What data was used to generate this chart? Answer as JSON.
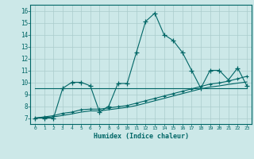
{
  "title": "",
  "xlabel": "Humidex (Indice chaleur)",
  "bg_color": "#cce8e8",
  "grid_color": "#aacccc",
  "line_color": "#006666",
  "xlim": [
    -0.5,
    23.5
  ],
  "ylim": [
    6.5,
    16.5
  ],
  "xticks": [
    0,
    1,
    2,
    3,
    4,
    5,
    6,
    7,
    8,
    9,
    10,
    11,
    12,
    13,
    14,
    15,
    16,
    17,
    18,
    19,
    20,
    21,
    22,
    23
  ],
  "yticks": [
    7,
    8,
    9,
    10,
    11,
    12,
    13,
    14,
    15,
    16
  ],
  "line1_x": [
    0,
    1,
    2,
    3,
    4,
    5,
    6,
    7,
    8,
    9,
    10,
    11,
    12,
    13,
    14,
    15,
    16,
    17,
    18,
    19,
    20,
    21,
    22,
    23
  ],
  "line1_y": [
    7.0,
    7.0,
    7.0,
    9.5,
    10.0,
    10.0,
    9.7,
    7.5,
    8.0,
    9.9,
    9.9,
    12.5,
    15.1,
    15.8,
    14.0,
    13.5,
    12.5,
    11.0,
    9.5,
    11.0,
    11.0,
    10.2,
    11.2,
    9.7
  ],
  "line2_x": [
    0,
    1,
    2,
    3,
    4,
    5,
    6,
    7,
    8,
    9,
    10,
    11,
    12,
    13,
    14,
    15,
    16,
    17,
    18,
    19,
    20,
    21,
    22,
    23
  ],
  "line2_y": [
    7.0,
    7.1,
    7.2,
    7.4,
    7.5,
    7.7,
    7.75,
    7.75,
    7.85,
    7.95,
    8.05,
    8.25,
    8.45,
    8.65,
    8.85,
    9.05,
    9.25,
    9.45,
    9.65,
    9.85,
    9.95,
    10.1,
    10.3,
    10.5
  ],
  "line3_x": [
    0,
    1,
    2,
    3,
    4,
    5,
    6,
    7,
    8,
    9,
    10,
    11,
    12,
    13,
    14,
    15,
    16,
    17,
    18,
    19,
    20,
    21,
    22,
    23
  ],
  "line3_y": [
    7.0,
    7.05,
    7.1,
    7.22,
    7.35,
    7.5,
    7.6,
    7.6,
    7.7,
    7.8,
    7.9,
    8.05,
    8.25,
    8.45,
    8.65,
    8.85,
    9.05,
    9.25,
    9.45,
    9.6,
    9.7,
    9.82,
    9.93,
    10.03
  ],
  "line4_x": [
    0,
    23
  ],
  "line4_y": [
    9.5,
    9.5
  ]
}
